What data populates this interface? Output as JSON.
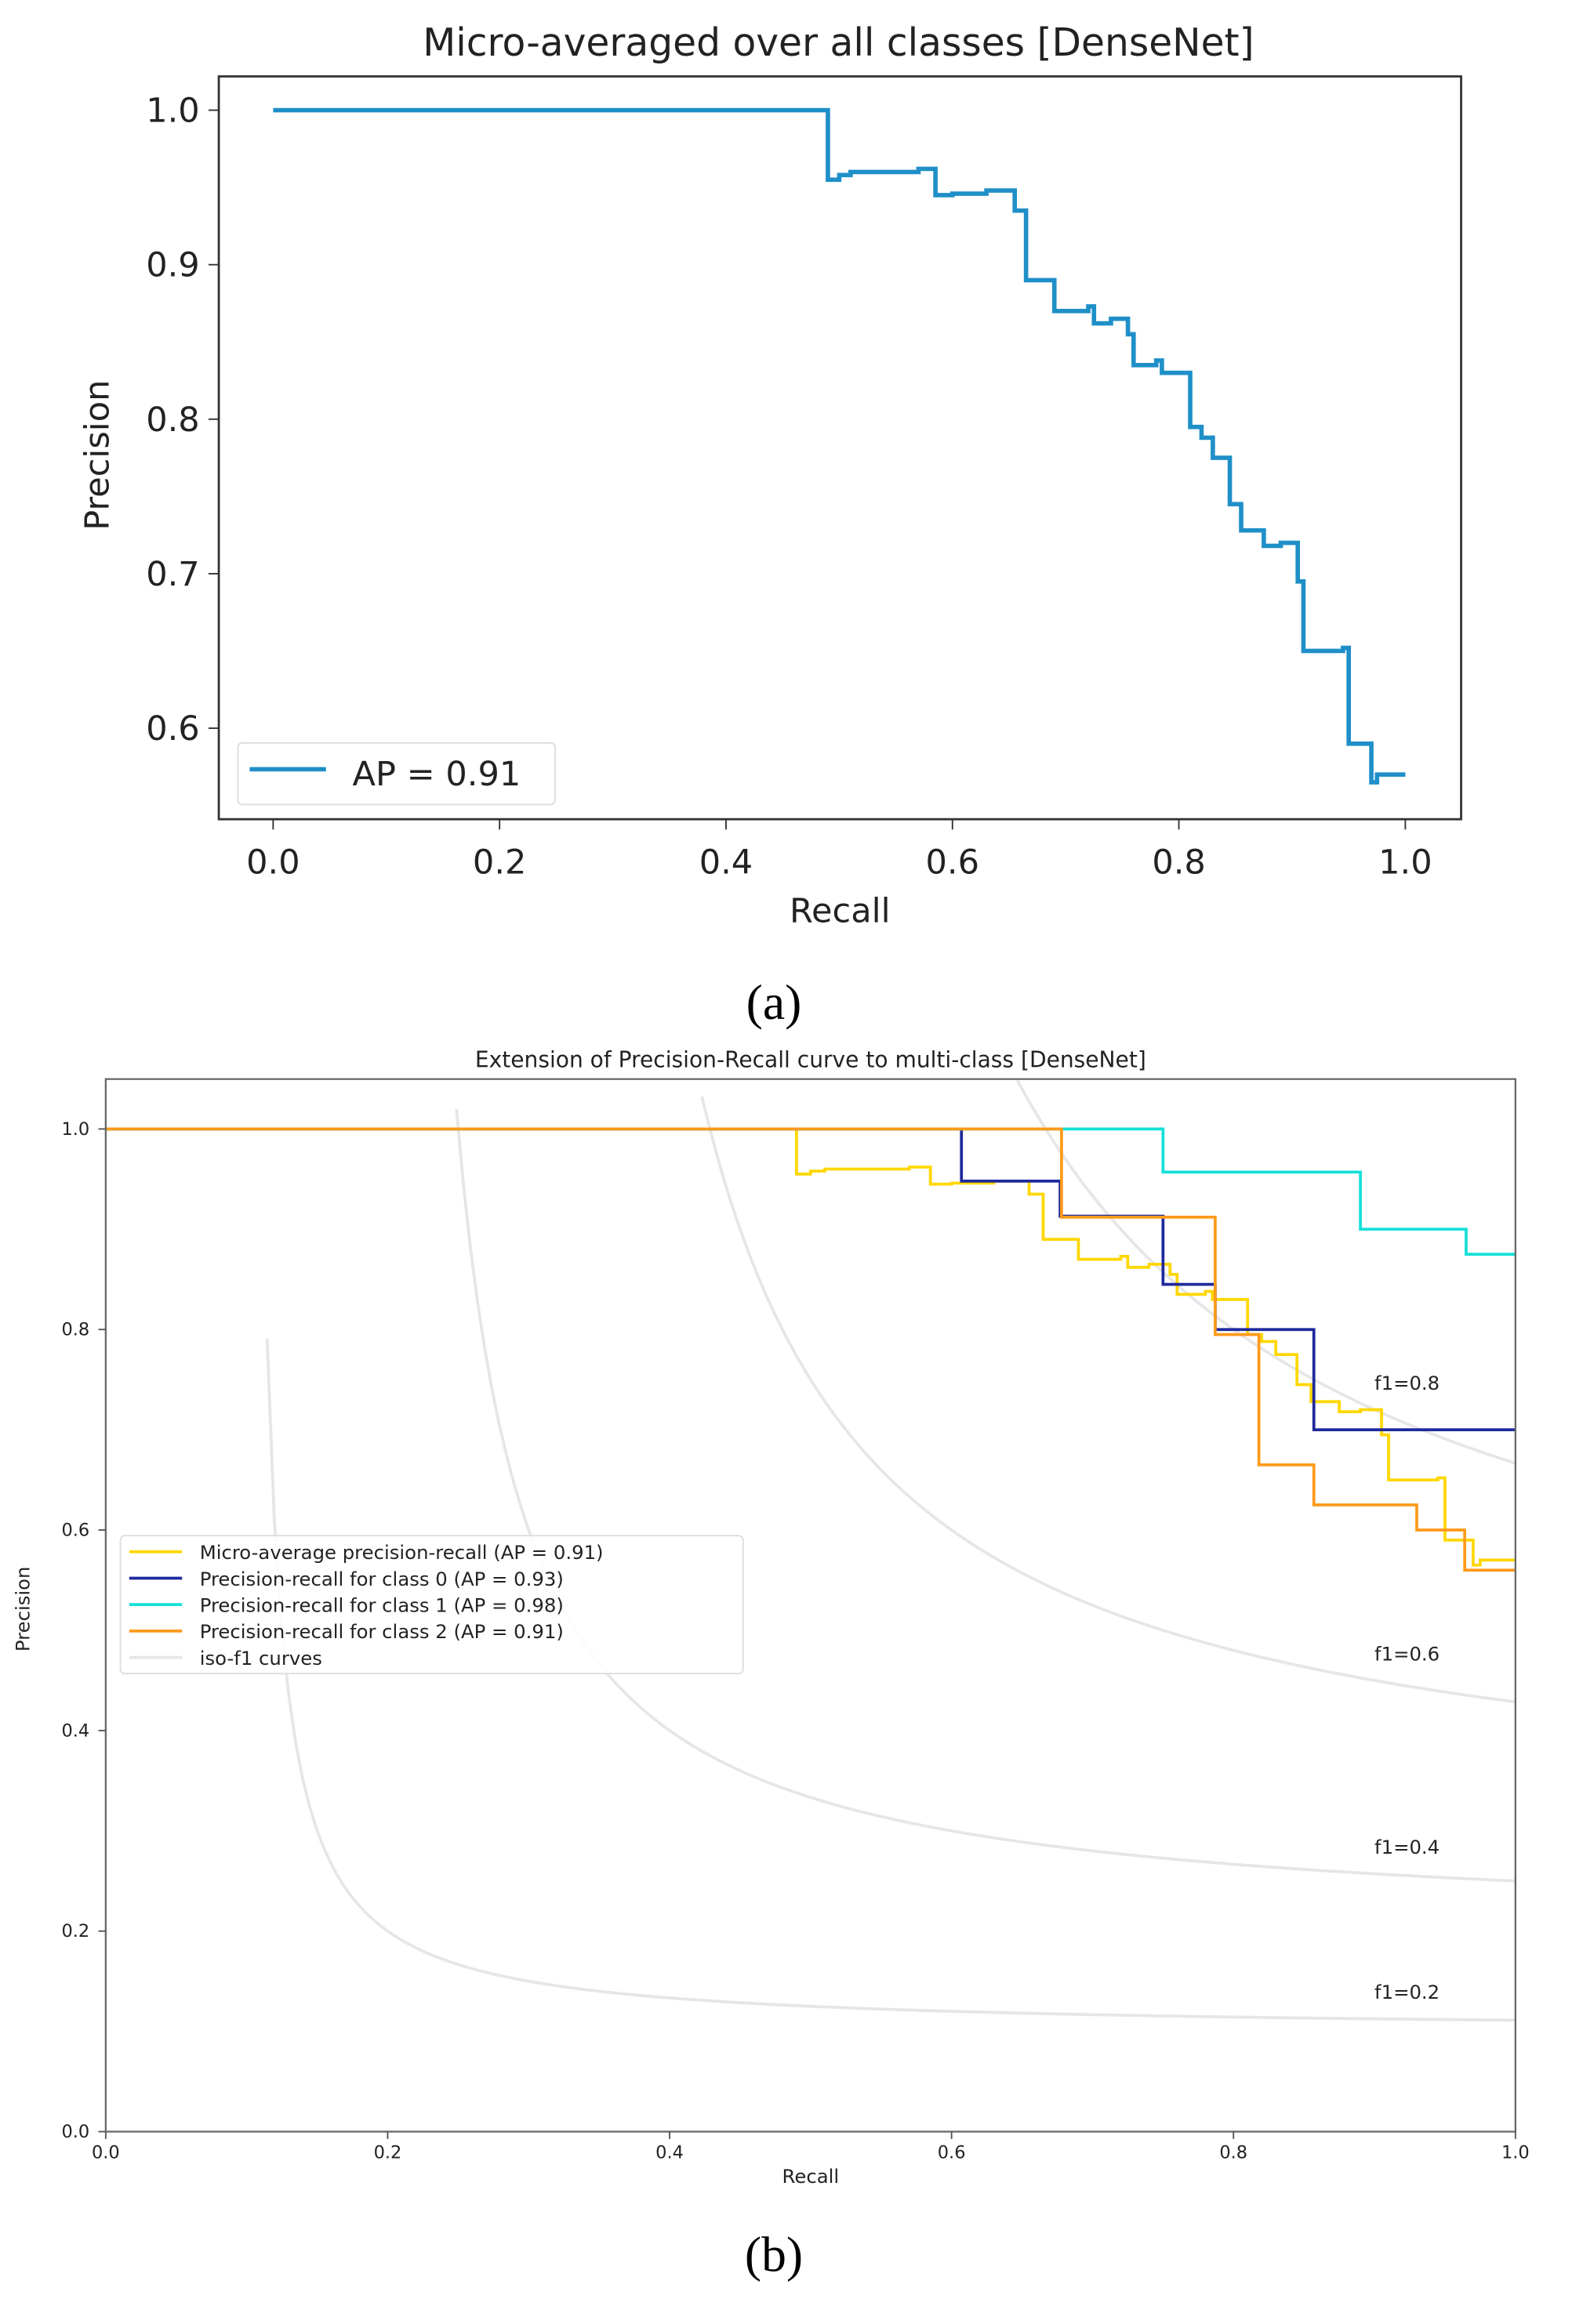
{
  "chart_data": [
    {
      "type": "line",
      "title": "Micro-averaged over all classes [DenseNet]",
      "xlabel": "Recall",
      "ylabel": "Precision",
      "xlim": [
        -0.05,
        1.05
      ],
      "ylim": [
        0.541,
        1.022
      ],
      "xticks": [
        "0.0",
        "0.2",
        "0.4",
        "0.6",
        "0.8",
        "1.0"
      ],
      "yticks": [
        "0.6",
        "0.7",
        "0.8",
        "0.9",
        "1.0"
      ],
      "legend_position": "lower-left",
      "caption": "(a)",
      "series": [
        {
          "name": "AP = 0.91",
          "color": "#1f8fc8",
          "step": "post",
          "x": [
            0,
            0.49,
            0.5,
            0.51,
            0.57,
            0.585,
            0.6,
            0.63,
            0.655,
            0.665,
            0.69,
            0.72,
            0.725,
            0.74,
            0.755,
            0.76,
            0.78,
            0.785,
            0.81,
            0.82,
            0.83,
            0.845,
            0.855,
            0.875,
            0.89,
            0.905,
            0.91,
            0.945,
            0.95,
            0.97,
            0.975,
            1.0
          ],
          "y": [
            1.0,
            0.955,
            0.958,
            0.96,
            0.962,
            0.945,
            0.946,
            0.948,
            0.935,
            0.89,
            0.87,
            0.873,
            0.862,
            0.865,
            0.855,
            0.835,
            0.838,
            0.83,
            0.795,
            0.788,
            0.775,
            0.745,
            0.728,
            0.718,
            0.72,
            0.695,
            0.65,
            0.652,
            0.59,
            0.565,
            0.57,
            0.57
          ]
        }
      ]
    },
    {
      "type": "line",
      "title": "Extension of Precision-Recall curve to multi-class [DenseNet]",
      "xlabel": "Recall",
      "ylabel": "Precision",
      "xlim": [
        0,
        1
      ],
      "ylim": [
        0,
        1.05
      ],
      "xticks": [
        "0.0",
        "0.2",
        "0.4",
        "0.6",
        "0.8",
        "1.0"
      ],
      "yticks": [
        "0.0",
        "0.2",
        "0.4",
        "0.6",
        "0.8",
        "1.0"
      ],
      "legend_position": "center-left",
      "caption": "(b)",
      "iso_f1": {
        "values": [
          0.2,
          0.4,
          0.6,
          0.8
        ],
        "labels": [
          "f1=0.2",
          "f1=0.4",
          "f1=0.6",
          "f1=0.8"
        ],
        "color": "#e6e6e6",
        "legend": "iso-f1 curves"
      },
      "series": [
        {
          "name": "Micro-average precision-recall (AP = 0.91)",
          "color": "#ffd700",
          "step": "post",
          "x": [
            0,
            0.49,
            0.5,
            0.51,
            0.57,
            0.585,
            0.6,
            0.63,
            0.655,
            0.665,
            0.69,
            0.72,
            0.725,
            0.74,
            0.755,
            0.76,
            0.78,
            0.785,
            0.81,
            0.82,
            0.83,
            0.845,
            0.855,
            0.875,
            0.89,
            0.905,
            0.91,
            0.945,
            0.95,
            0.97,
            0.975,
            1.0
          ],
          "y": [
            1.0,
            0.955,
            0.958,
            0.96,
            0.962,
            0.945,
            0.946,
            0.948,
            0.935,
            0.89,
            0.87,
            0.873,
            0.862,
            0.865,
            0.855,
            0.835,
            0.838,
            0.83,
            0.795,
            0.788,
            0.775,
            0.745,
            0.728,
            0.718,
            0.72,
            0.695,
            0.65,
            0.652,
            0.59,
            0.565,
            0.57,
            0.57
          ]
        },
        {
          "name": "Precision-recall for class 0 (AP = 0.93)",
          "color": "#1f2a9c",
          "step": "post",
          "x": [
            0,
            0.607,
            0.677,
            0.75,
            0.787,
            0.857,
            0.93,
            1.0
          ],
          "y": [
            1.0,
            0.948,
            0.913,
            0.845,
            0.8,
            0.7,
            0.7,
            0.7
          ]
        },
        {
          "name": "Precision-recall for class 1 (AP = 0.98)",
          "color": "#14e0d8",
          "step": "post",
          "x": [
            0,
            0.75,
            0.89,
            0.965,
            1.0
          ],
          "y": [
            1.0,
            0.957,
            0.9,
            0.875,
            0.875
          ]
        },
        {
          "name": "Precision-recall for class 2 (AP = 0.91)",
          "color": "#ff9a1a",
          "step": "post",
          "x": [
            0,
            0.678,
            0.787,
            0.818,
            0.857,
            0.93,
            0.964,
            1.0
          ],
          "y": [
            1.0,
            0.912,
            0.795,
            0.665,
            0.625,
            0.6,
            0.56,
            0.56
          ]
        }
      ]
    }
  ]
}
